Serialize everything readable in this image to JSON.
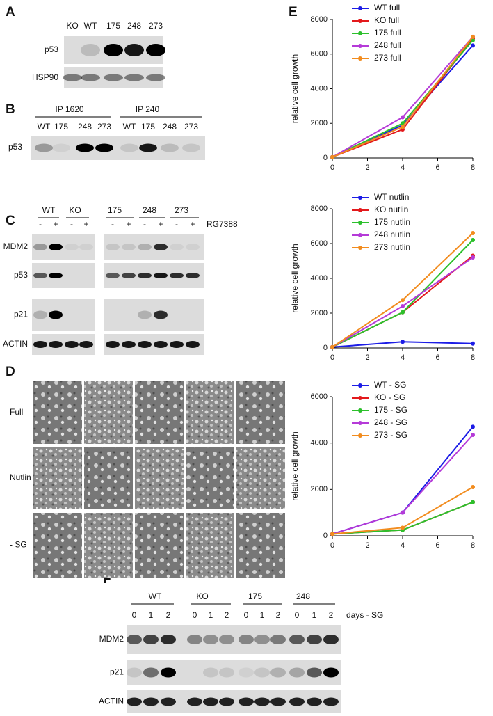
{
  "panels": {
    "A": {
      "label": "A",
      "lanes": [
        "KO",
        "WT",
        "175",
        "248",
        "273"
      ],
      "rows": [
        "p53",
        "HSP90"
      ]
    },
    "B": {
      "label": "B",
      "groups": [
        "IP 1620",
        "IP 240"
      ],
      "lanes": [
        "WT",
        "175",
        "248",
        "273",
        "WT",
        "175",
        "248",
        "273"
      ],
      "rows": [
        "p53"
      ]
    },
    "C": {
      "label": "C",
      "groups": [
        "WT",
        "KO",
        "175",
        "248",
        "273"
      ],
      "treatment": [
        "-",
        "+",
        "-",
        "+",
        "-",
        "+",
        "-",
        "+",
        "-",
        "+"
      ],
      "treatment_label": "RG7388",
      "rows": [
        "MDM2",
        "p53",
        "p21",
        "ACTIN"
      ]
    },
    "D": {
      "label": "D",
      "rows": [
        "Full",
        "Nutlin",
        "- SG"
      ]
    },
    "E": {
      "label": "E"
    },
    "F": {
      "label": "F",
      "groups": [
        "WT",
        "KO",
        "175",
        "248"
      ],
      "lanes": [
        "0",
        "1",
        "2",
        "0",
        "1",
        "2",
        "0",
        "1",
        "2",
        "0",
        "1",
        "2"
      ],
      "lanes_label": "days - SG",
      "rows": [
        "MDM2",
        "p21",
        "ACTIN"
      ]
    }
  },
  "chart_data": [
    {
      "type": "line",
      "y_label": "relative cell growth",
      "x": [
        0,
        4,
        8
      ],
      "xlim": [
        0,
        8
      ],
      "xticks": [
        0,
        2,
        4,
        6,
        8
      ],
      "ylim": [
        0,
        8000
      ],
      "yticks": [
        0,
        2000,
        4000,
        6000,
        8000
      ],
      "series": [
        {
          "name": "WT full",
          "color": "#1c1ce6",
          "values": [
            50,
            1900,
            6500
          ]
        },
        {
          "name": "KO full",
          "color": "#e3191c",
          "values": [
            50,
            1650,
            6900
          ]
        },
        {
          "name": "175 full",
          "color": "#2cc02c",
          "values": [
            50,
            2000,
            6800
          ]
        },
        {
          "name": "248 full",
          "color": "#b53ad8",
          "values": [
            50,
            2350,
            7000
          ]
        },
        {
          "name": "273 full",
          "color": "#f28c1e",
          "values": [
            50,
            1800,
            7000
          ]
        }
      ]
    },
    {
      "type": "line",
      "y_label": "relative cell growth",
      "x": [
        0,
        4,
        8
      ],
      "xlim": [
        0,
        8
      ],
      "xticks": [
        0,
        2,
        4,
        6,
        8
      ],
      "ylim": [
        0,
        8000
      ],
      "yticks": [
        0,
        2000,
        4000,
        6000,
        8000
      ],
      "series": [
        {
          "name": "WT nutlin",
          "color": "#1c1ce6",
          "values": [
            50,
            350,
            250
          ]
        },
        {
          "name": "KO nutlin",
          "color": "#e3191c",
          "values": [
            50,
            2050,
            5300
          ]
        },
        {
          "name": "175 nutlin",
          "color": "#2cc02c",
          "values": [
            50,
            2050,
            6200
          ]
        },
        {
          "name": "248 nutlin",
          "color": "#b53ad8",
          "values": [
            50,
            2400,
            5200
          ]
        },
        {
          "name": "273 nutlin",
          "color": "#f28c1e",
          "values": [
            50,
            2750,
            6600
          ]
        }
      ]
    },
    {
      "type": "line",
      "y_label": "relative cell growth",
      "x": [
        0,
        4,
        8
      ],
      "xlim": [
        0,
        8
      ],
      "xticks": [
        0,
        2,
        4,
        6,
        8
      ],
      "ylim": [
        0,
        6000
      ],
      "yticks": [
        0,
        2000,
        4000,
        6000
      ],
      "series": [
        {
          "name": "WT - SG",
          "color": "#1c1ce6",
          "values": [
            80,
            1000,
            4700
          ]
        },
        {
          "name": "KO - SG",
          "color": "#e3191c",
          "values": [
            80,
            250,
            1450
          ]
        },
        {
          "name": "175 - SG",
          "color": "#2cc02c",
          "values": [
            80,
            250,
            1450
          ]
        },
        {
          "name": "248 - SG",
          "color": "#b53ad8",
          "values": [
            80,
            1000,
            4350
          ]
        },
        {
          "name": "273 - SG",
          "color": "#f28c1e",
          "values": [
            80,
            350,
            2100
          ]
        }
      ]
    }
  ]
}
